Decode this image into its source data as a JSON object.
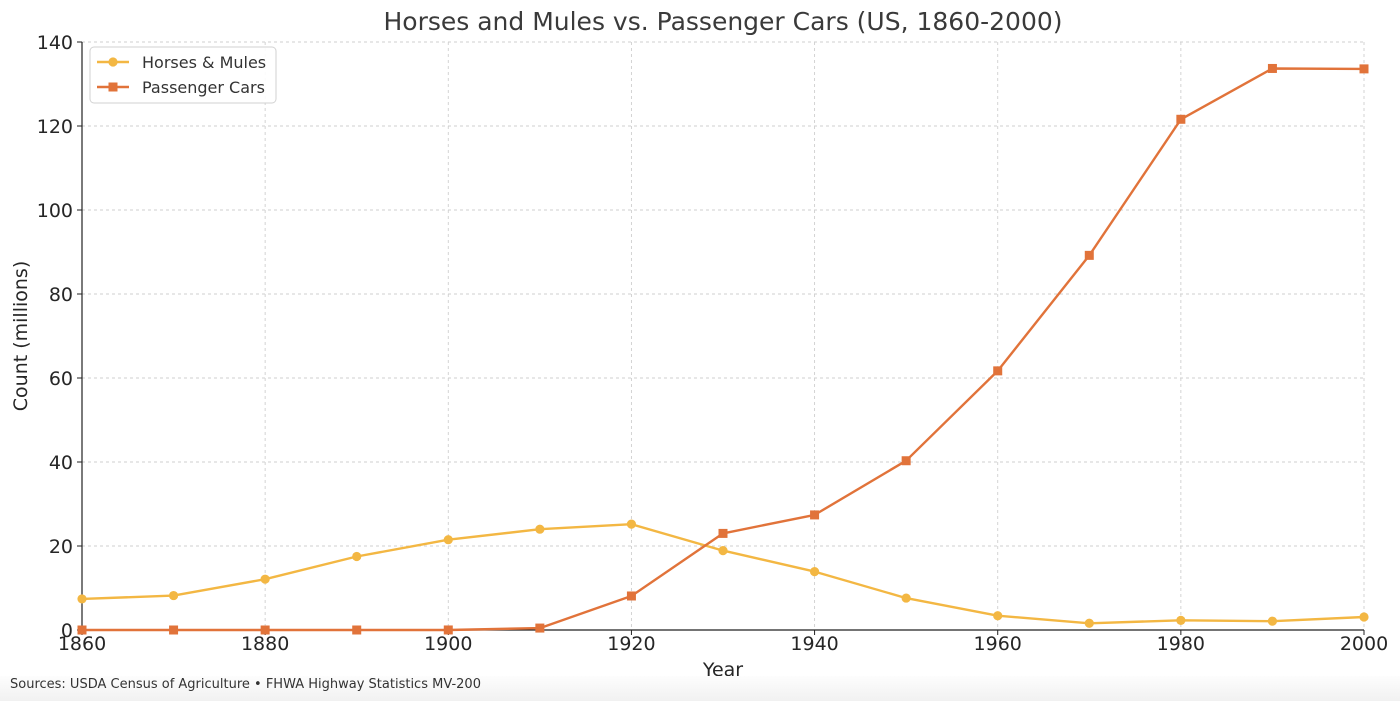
{
  "chart_data": {
    "type": "line",
    "title": "Horses and Mules vs. Passenger Cars (US, 1860-2000)",
    "xlabel": "Year",
    "ylabel": "Count (millions)",
    "xlim": [
      1860,
      2000
    ],
    "ylim": [
      0,
      140
    ],
    "x_ticks": [
      1860,
      1880,
      1900,
      1920,
      1940,
      1960,
      1980,
      2000
    ],
    "y_ticks": [
      0,
      20,
      40,
      60,
      80,
      100,
      120,
      140
    ],
    "grid": true,
    "legend_position": "top-left",
    "x": [
      1860,
      1870,
      1880,
      1890,
      1900,
      1910,
      1920,
      1930,
      1940,
      1950,
      1960,
      1970,
      1980,
      1990,
      2000
    ],
    "series": [
      {
        "name": "Horses & Mules",
        "marker": "circle",
        "color": "#f3b743",
        "values": [
          7.4,
          8.2,
          12.1,
          17.5,
          21.5,
          24.0,
          25.2,
          18.9,
          13.9,
          7.6,
          3.4,
          1.6,
          2.3,
          2.1,
          3.1
        ]
      },
      {
        "name": "Passenger Cars",
        "marker": "square",
        "color": "#e1733a",
        "values": [
          0,
          0,
          0,
          0,
          0.01,
          0.46,
          8.1,
          23.0,
          27.4,
          40.3,
          61.7,
          89.2,
          121.6,
          133.7,
          133.6
        ]
      }
    ]
  },
  "footer": {
    "sources": "Sources: USDA Census of Agriculture • FHWA Highway Statistics MV-200"
  }
}
